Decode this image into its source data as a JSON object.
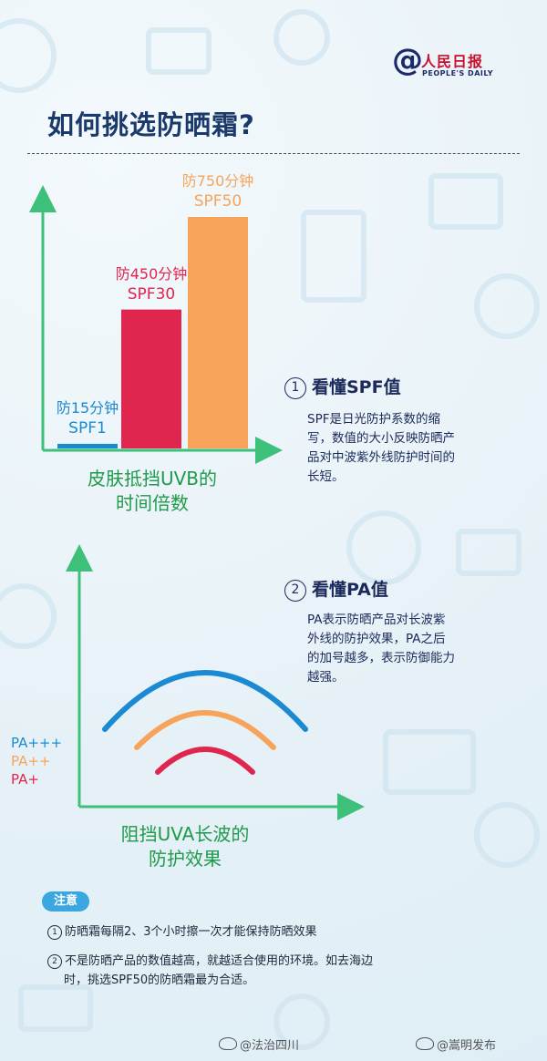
{
  "logo": {
    "at": "@",
    "name": "人民日报",
    "en": "PEOPLE'S DAILY"
  },
  "title": "如何挑选防晒霜?",
  "colors": {
    "blue": "#1b8ad2",
    "crimson": "#e0264f",
    "orange": "#f7a45a",
    "green": "#3cc07a",
    "navy": "#1b2a5a"
  },
  "chart_data": [
    {
      "type": "bar",
      "categories": [
        "SPF1",
        "SPF30",
        "SPF50"
      ],
      "values": [
        1,
        30,
        50
      ],
      "labels": [
        {
          "line1": "防15分钟",
          "line2": "SPF1"
        },
        {
          "line1": "防450分钟",
          "line2": "SPF30"
        },
        {
          "line1": "防750分钟",
          "line2": "SPF50"
        }
      ],
      "bar_colors": [
        "#1b8ad2",
        "#e0264f",
        "#f7a45a"
      ],
      "xlabel": [
        "皮肤抵挡UVB的",
        "时间倍数"
      ],
      "ylim": [
        0,
        60
      ]
    },
    {
      "type": "diagram",
      "series": [
        {
          "name": "PA+++",
          "color": "#1b8ad2"
        },
        {
          "name": "PA++",
          "color": "#f7a45a"
        },
        {
          "name": "PA+",
          "color": "#e0264f"
        }
      ],
      "xlabel": [
        "阻挡UVA长波的",
        "防护效果"
      ]
    }
  ],
  "spf": {
    "num": "①",
    "heading": "看懂SPF值",
    "lines": [
      "SPF是日光防护系数的缩",
      "写，数值的大小反映防晒产",
      "品对中波紫外线防护时间的",
      "长短。"
    ]
  },
  "pa": {
    "num": "②",
    "heading": "看懂PA值",
    "lines": [
      "PA表示防晒产品对长波紫",
      "外线的防护效果，PA之后",
      "的加号越多，表示防御能力",
      "越强。"
    ]
  },
  "note": {
    "tag": "注意",
    "items": [
      {
        "num": "1",
        "lines": [
          "防晒霜每隔2、3个小时擦一次才能保持防晒效果"
        ]
      },
      {
        "num": "2",
        "lines": [
          "不是防晒产品的数值越高，就越适合使用的环境。如去海边",
          "时，挑选SPF50的防晒霜最为合适。"
        ]
      }
    ]
  },
  "watermarks": [
    "@法治四川",
    "@嵩明发布"
  ]
}
